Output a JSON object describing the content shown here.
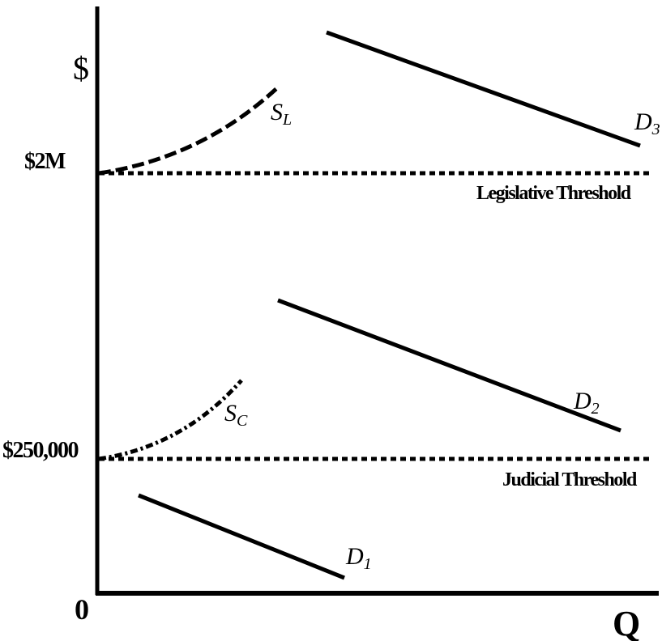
{
  "axes": {
    "y_label": "$",
    "x_label": "Q",
    "origin_label": "0"
  },
  "price_levels": {
    "upper": "$2M",
    "lower": "$250,000"
  },
  "thresholds": {
    "legislative": "Legislative Threshold",
    "judicial": "Judicial Threshold"
  },
  "curves": {
    "supply_legislative": {
      "base": "S",
      "sub": "L"
    },
    "supply_courts": {
      "base": "S",
      "sub": "C"
    },
    "demand_1": {
      "base": "D",
      "sub": "1"
    },
    "demand_2": {
      "base": "D",
      "sub": "2"
    },
    "demand_3": {
      "base": "D",
      "sub": "3"
    }
  },
  "colors": {
    "ink": "#000000",
    "background": "#ffffff"
  }
}
